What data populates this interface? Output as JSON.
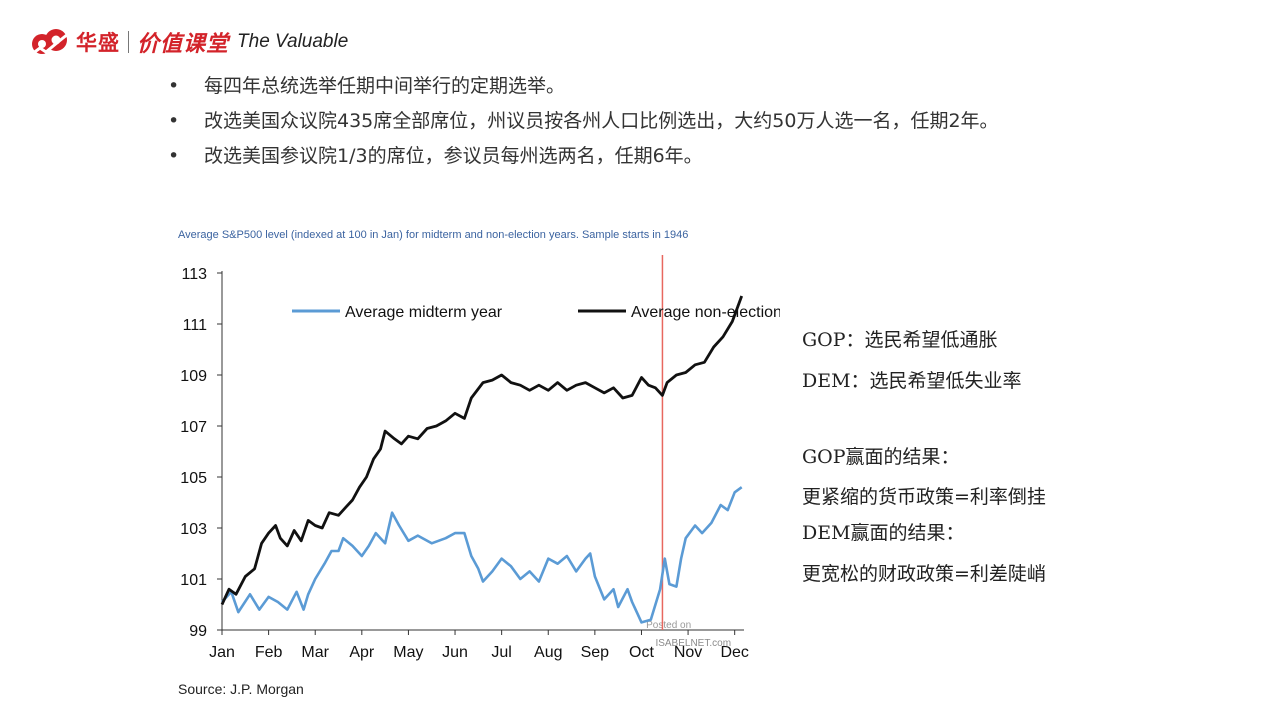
{
  "header": {
    "brand": "华盛",
    "brand2": "价值课堂",
    "tagline": "The Valuable"
  },
  "bullets": [
    "每四年总统选举任期中间举行的定期选举。",
    "改选美国众议院435席全部席位，州议员按各州人口比例选出，大约50万人选一名，任期2年。",
    "改选美国参议院1/3的席位，参议员每州选两名，任期6年。"
  ],
  "chart_data": {
    "type": "line",
    "title": "Average S&P500 level (indexed at 100 in Jan) for midterm and non-election years. Sample starts in 1946",
    "source": "Source: J.P. Morgan",
    "watermark": [
      "Posted on",
      "ISABELNET.com"
    ],
    "categories": [
      "Jan",
      "Feb",
      "Mar",
      "Apr",
      "May",
      "Jun",
      "Jul",
      "Aug",
      "Sep",
      "Oct",
      "Nov",
      "Dec"
    ],
    "yticks": [
      "99",
      "101",
      "103",
      "105",
      "107",
      "109",
      "111",
      "113"
    ],
    "ylim": [
      99,
      113
    ],
    "xlim": [
      0,
      11.2
    ],
    "legend_position": "top",
    "vertical_marker_x": 9.45,
    "series": [
      {
        "name": "Average midterm year",
        "color": "#5b9bd5",
        "points": [
          [
            0,
            100.1
          ],
          [
            0.2,
            100.5
          ],
          [
            0.35,
            99.7
          ],
          [
            0.6,
            100.4
          ],
          [
            0.8,
            99.8
          ],
          [
            1.0,
            100.3
          ],
          [
            1.2,
            100.1
          ],
          [
            1.4,
            99.8
          ],
          [
            1.6,
            100.5
          ],
          [
            1.75,
            99.8
          ],
          [
            1.85,
            100.4
          ],
          [
            2.0,
            101.0
          ],
          [
            2.2,
            101.6
          ],
          [
            2.35,
            102.1
          ],
          [
            2.5,
            102.1
          ],
          [
            2.6,
            102.6
          ],
          [
            2.8,
            102.3
          ],
          [
            3.0,
            101.9
          ],
          [
            3.15,
            102.3
          ],
          [
            3.3,
            102.8
          ],
          [
            3.5,
            102.4
          ],
          [
            3.65,
            103.6
          ],
          [
            3.8,
            103.1
          ],
          [
            4.0,
            102.5
          ],
          [
            4.2,
            102.7
          ],
          [
            4.5,
            102.4
          ],
          [
            4.8,
            102.6
          ],
          [
            5.0,
            102.8
          ],
          [
            5.2,
            102.8
          ],
          [
            5.35,
            101.9
          ],
          [
            5.5,
            101.4
          ],
          [
            5.6,
            100.9
          ],
          [
            5.8,
            101.3
          ],
          [
            6.0,
            101.8
          ],
          [
            6.2,
            101.5
          ],
          [
            6.4,
            101.0
          ],
          [
            6.6,
            101.3
          ],
          [
            6.8,
            100.9
          ],
          [
            7.0,
            101.8
          ],
          [
            7.2,
            101.6
          ],
          [
            7.4,
            101.9
          ],
          [
            7.6,
            101.3
          ],
          [
            7.8,
            101.8
          ],
          [
            7.9,
            102.0
          ],
          [
            8.0,
            101.1
          ],
          [
            8.2,
            100.2
          ],
          [
            8.4,
            100.6
          ],
          [
            8.5,
            99.9
          ],
          [
            8.7,
            100.6
          ],
          [
            8.8,
            100.1
          ],
          [
            9.0,
            99.3
          ],
          [
            9.2,
            99.4
          ],
          [
            9.4,
            100.6
          ],
          [
            9.5,
            101.8
          ],
          [
            9.6,
            100.8
          ],
          [
            9.75,
            100.7
          ],
          [
            9.85,
            101.8
          ],
          [
            9.95,
            102.6
          ],
          [
            10.15,
            103.1
          ],
          [
            10.3,
            102.8
          ],
          [
            10.5,
            103.2
          ],
          [
            10.7,
            103.9
          ],
          [
            10.85,
            103.7
          ],
          [
            11.0,
            104.4
          ],
          [
            11.15,
            104.6
          ]
        ]
      },
      {
        "name": "Average non-election year",
        "color": "#111111",
        "points": [
          [
            0,
            100.0
          ],
          [
            0.15,
            100.6
          ],
          [
            0.3,
            100.4
          ],
          [
            0.5,
            101.1
          ],
          [
            0.7,
            101.4
          ],
          [
            0.85,
            102.4
          ],
          [
            1.0,
            102.8
          ],
          [
            1.15,
            103.1
          ],
          [
            1.25,
            102.6
          ],
          [
            1.4,
            102.3
          ],
          [
            1.55,
            102.9
          ],
          [
            1.7,
            102.5
          ],
          [
            1.85,
            103.3
          ],
          [
            2.0,
            103.1
          ],
          [
            2.15,
            103.0
          ],
          [
            2.3,
            103.6
          ],
          [
            2.5,
            103.5
          ],
          [
            2.65,
            103.8
          ],
          [
            2.8,
            104.1
          ],
          [
            2.95,
            104.6
          ],
          [
            3.1,
            105.0
          ],
          [
            3.25,
            105.7
          ],
          [
            3.4,
            106.1
          ],
          [
            3.5,
            106.8
          ],
          [
            3.7,
            106.5
          ],
          [
            3.85,
            106.3
          ],
          [
            4.0,
            106.6
          ],
          [
            4.2,
            106.5
          ],
          [
            4.4,
            106.9
          ],
          [
            4.6,
            107.0
          ],
          [
            4.8,
            107.2
          ],
          [
            5.0,
            107.5
          ],
          [
            5.2,
            107.3
          ],
          [
            5.35,
            108.1
          ],
          [
            5.6,
            108.7
          ],
          [
            5.8,
            108.8
          ],
          [
            6.0,
            109.0
          ],
          [
            6.2,
            108.7
          ],
          [
            6.4,
            108.6
          ],
          [
            6.6,
            108.4
          ],
          [
            6.8,
            108.6
          ],
          [
            7.0,
            108.4
          ],
          [
            7.2,
            108.7
          ],
          [
            7.4,
            108.4
          ],
          [
            7.6,
            108.6
          ],
          [
            7.8,
            108.7
          ],
          [
            8.0,
            108.5
          ],
          [
            8.2,
            108.3
          ],
          [
            8.4,
            108.5
          ],
          [
            8.6,
            108.1
          ],
          [
            8.8,
            108.2
          ],
          [
            9.0,
            108.9
          ],
          [
            9.15,
            108.6
          ],
          [
            9.3,
            108.5
          ],
          [
            9.45,
            108.2
          ],
          [
            9.55,
            108.7
          ],
          [
            9.75,
            109.0
          ],
          [
            9.95,
            109.1
          ],
          [
            10.15,
            109.4
          ],
          [
            10.35,
            109.5
          ],
          [
            10.55,
            110.1
          ],
          [
            10.75,
            110.5
          ],
          [
            10.95,
            111.1
          ],
          [
            11.15,
            112.1
          ]
        ]
      }
    ]
  },
  "notes": {
    "gop_view": "GOP：选民希望低通胀",
    "dem_view": "DEM：选民希望低失业率",
    "gop_win": "GOP赢面的结果：",
    "gop_result": "更紧缩的货币政策=利率倒挂",
    "dem_win": "DEM赢面的结果：",
    "dem_result": "更宽松的财政政策=利差陡峭"
  }
}
